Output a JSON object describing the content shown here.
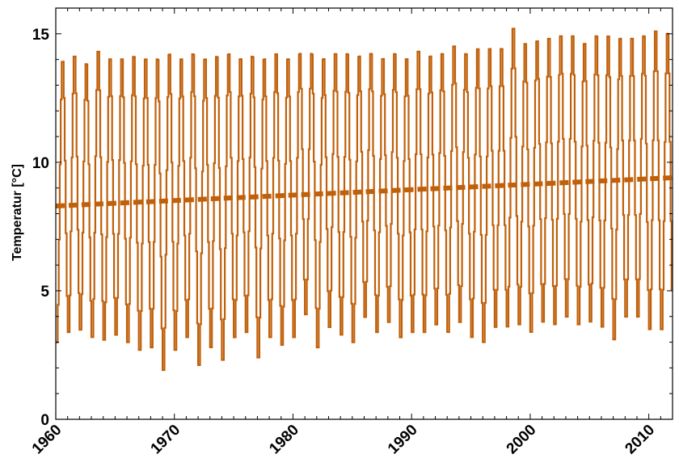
{
  "chart_data": {
    "type": "line",
    "title": "",
    "xlabel": "",
    "ylabel": "Temperatur [°C]",
    "xlim": [
      1960,
      2012
    ],
    "ylim": [
      0,
      16
    ],
    "xticks": [
      1960,
      1970,
      1980,
      1990,
      2000,
      2010
    ],
    "yticks": [
      0,
      5,
      10,
      15
    ],
    "grid": false,
    "legend": "none",
    "series": [
      {
        "style": "solid",
        "color": "#c0600a",
        "x_start": 1960,
        "year_max": [
          14.1,
          14.3,
          14.0,
          14.5,
          14.2,
          14.2,
          14.3,
          14.2,
          14.2,
          14.4,
          14.2,
          14.4,
          14.2,
          14.3,
          14.4,
          14.2,
          14.3,
          14.2,
          14.4,
          14.2,
          14.4,
          14.4,
          14.2,
          14.4,
          14.4,
          14.3,
          14.4,
          14.2,
          14.4,
          14.2,
          14.5,
          14.3,
          14.4,
          14.7,
          14.4,
          14.6,
          14.6,
          14.6,
          15.4,
          14.8,
          14.9,
          15.0,
          15.1,
          15.1,
          14.8,
          15.1,
          15.1,
          15.0,
          15.0,
          15.1,
          15.3,
          15.2
        ],
        "year_min": [
          2.8,
          3.2,
          3.3,
          3.0,
          2.9,
          3.1,
          2.8,
          2.5,
          2.6,
          1.7,
          2.5,
          3.0,
          1.9,
          2.6,
          2.1,
          3.0,
          3.2,
          2.2,
          3.0,
          2.7,
          3.0,
          3.9,
          2.6,
          3.4,
          3.1,
          2.8,
          3.8,
          3.2,
          3.6,
          3.0,
          3.2,
          3.2,
          3.5,
          3.2,
          3.6,
          3.0,
          2.8,
          3.4,
          3.4,
          3.5,
          3.2,
          3.6,
          3.5,
          3.8,
          3.5,
          3.6,
          3.4,
          2.9,
          3.8,
          3.8,
          3.3,
          3.3
        ]
      },
      {
        "style": "dashed",
        "color": "#c0600a",
        "x": [
          1960,
          2012
        ],
        "y": [
          8.3,
          9.4
        ]
      }
    ]
  }
}
